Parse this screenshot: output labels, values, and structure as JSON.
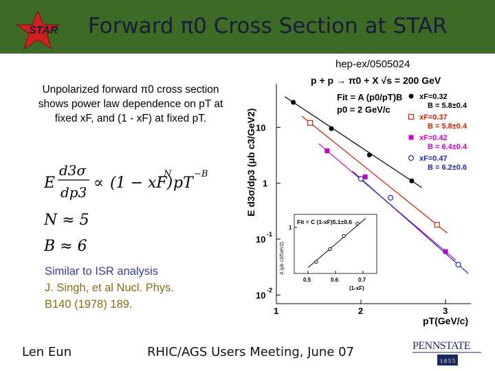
{
  "header": {
    "title": "Forward π0 Cross Section at STAR",
    "logo_text": "STAR",
    "bg_color": "#3d6b26"
  },
  "left": {
    "description": "Unpolarized forward π0 cross section shows power law dependence on pT at fixed xF, and (1 - xF) at fixed pT.",
    "formula": {
      "E": "E",
      "num": "d3σ",
      "den": "dp3",
      "prop": "∝",
      "factor": "(1 − xF)",
      "exp_N": "N",
      "pT": "pT",
      "exp_B": "−B",
      "n_line": "N ≈ 5",
      "b_line": "B ≈ 6"
    },
    "isr_line1": "Similar to ISR analysis",
    "isr_line2": "J. Singh, et al Nucl. Phys.",
    "isr_line3": "B140 (1978) 189."
  },
  "footer": {
    "author": "Len Eun",
    "meeting": "RHIC/AGS Users Meeting, June 07",
    "institution": "PENNSTATE",
    "year": "1855"
  },
  "chart_data": [
    {
      "type": "scatter",
      "title": "p + p → π0 + X  √s = 200 GeV",
      "reference": "hep-ex/0505024",
      "xlabel": "pT(GeV/c)",
      "ylabel": "E d3σ/dp3 (μb c3/GeV2)",
      "xscale": "linear",
      "yscale": "log",
      "x_ticks": [
        "1",
        "2",
        "3"
      ],
      "y_ticks": [
        "10-2",
        "10-1",
        "1",
        "10"
      ],
      "xlim": [
        1.0,
        3.3
      ],
      "ylim": [
        0.007,
        60
      ],
      "fit_text": "Fit = A (p0/pT)B",
      "fit_text2": "p0 = 2 GeV/c",
      "series": [
        {
          "name": "xF=0.32",
          "fit": "B = 5.8±0.4",
          "color": "#000000",
          "marker": "filled-circle",
          "x": [
            1.2,
            1.65,
            2.1,
            2.6
          ],
          "y": [
            28,
            9.5,
            3.2,
            1.1
          ]
        },
        {
          "name": "xF=0.37",
          "fit": "B = 5.8±0.4",
          "color": "#cc2200",
          "marker": "open-square",
          "x": [
            1.4,
            2.9
          ],
          "y": [
            12,
            0.18
          ]
        },
        {
          "name": "xF=0.42",
          "fit": "B = 6.4±0.4",
          "color": "#cc00cc",
          "marker": "filled-square",
          "x": [
            1.6,
            2.05,
            3.0
          ],
          "y": [
            3.8,
            1.3,
            0.06
          ]
        },
        {
          "name": "xF=0.47",
          "fit": "B = 6.2±0.6",
          "color": "#1a2aa8",
          "marker": "open-circle",
          "x": [
            2.0,
            2.35,
            3.15
          ],
          "y": [
            1.2,
            0.55,
            0.035
          ]
        }
      ]
    },
    {
      "type": "scatter",
      "title": "Fit = C (1-xF)5.1±0.6",
      "xlabel": "(1-xF)",
      "ylabel": "A (μb c3/GeV2)",
      "yscale": "log",
      "x_ticks": [
        "0.5",
        "0.6",
        "0.7"
      ],
      "y_ticks": [
        "1"
      ],
      "xlim": [
        0.45,
        0.75
      ],
      "ylim": [
        0.04,
        2.5
      ],
      "x": [
        0.53,
        0.58,
        0.63,
        0.68
      ],
      "y": [
        0.09,
        0.22,
        0.55,
        1.3
      ]
    }
  ]
}
